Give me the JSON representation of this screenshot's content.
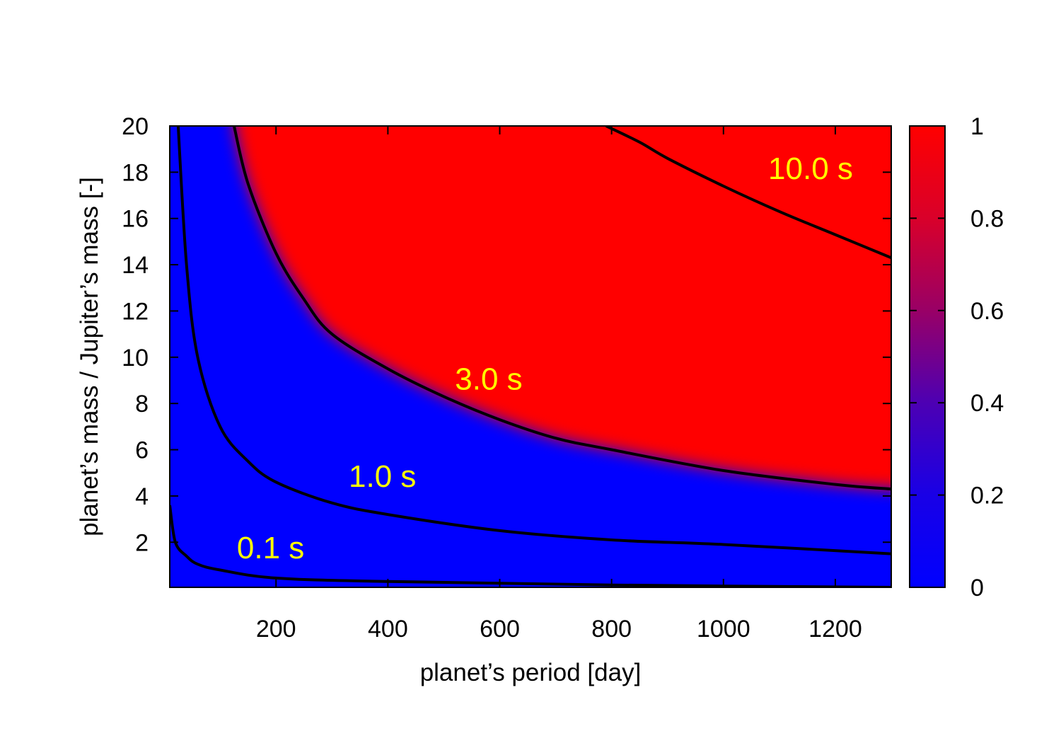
{
  "chart_data": {
    "type": "heatmap",
    "title": "",
    "xlabel": "planet’s period [day]",
    "ylabel": "planet’s mass  / Jupiter’s mass [-]",
    "xlim": [
      10,
      1300
    ],
    "ylim": [
      0.05,
      20
    ],
    "x_ticks": [
      "200",
      "400",
      "600",
      "800",
      "1000",
      "1200"
    ],
    "y_ticks": [
      "2",
      "4",
      "6",
      "8",
      "10",
      "12",
      "14",
      "16",
      "18",
      "20"
    ],
    "colorbar": {
      "range": [
        0,
        1
      ],
      "ticks": [
        "0",
        "0.2",
        "0.4",
        "0.6",
        "0.8",
        "1"
      ],
      "colors": [
        "#0000ff",
        "#ff0000"
      ]
    },
    "heatmap_description": "value ≈ 0 (blue) below the 3.0 s contour, ≈ 1 (red) above it",
    "contours": [
      {
        "label": "0.1 s",
        "points": [
          [
            10,
            3.6
          ],
          [
            20,
            2.0
          ],
          [
            40,
            1.4
          ],
          [
            60,
            1.05
          ],
          [
            100,
            0.8
          ],
          [
            200,
            0.45
          ],
          [
            400,
            0.3
          ],
          [
            800,
            0.15
          ],
          [
            1300,
            0.05
          ]
        ]
      },
      {
        "label": "1.0 s",
        "points": [
          [
            25,
            20
          ],
          [
            40,
            14
          ],
          [
            60,
            10
          ],
          [
            100,
            7.0
          ],
          [
            150,
            5.5
          ],
          [
            200,
            4.6
          ],
          [
            300,
            3.7
          ],
          [
            400,
            3.2
          ],
          [
            600,
            2.5
          ],
          [
            800,
            2.1
          ],
          [
            1000,
            1.9
          ],
          [
            1300,
            1.5
          ]
        ]
      },
      {
        "label": "3.0 s",
        "points": [
          [
            125,
            20
          ],
          [
            150,
            17.5
          ],
          [
            200,
            14.5
          ],
          [
            250,
            12.5
          ],
          [
            300,
            11.0
          ],
          [
            400,
            9.5
          ],
          [
            500,
            8.3
          ],
          [
            600,
            7.3
          ],
          [
            700,
            6.5
          ],
          [
            800,
            6.0
          ],
          [
            1000,
            5.1
          ],
          [
            1200,
            4.5
          ],
          [
            1300,
            4.3
          ]
        ]
      },
      {
        "label": "10.0 s",
        "points": [
          [
            790,
            20
          ],
          [
            850,
            19.3
          ],
          [
            900,
            18.6
          ],
          [
            1000,
            17.4
          ],
          [
            1100,
            16.3
          ],
          [
            1200,
            15.3
          ],
          [
            1300,
            14.3
          ]
        ]
      }
    ],
    "contour_label_positions": [
      [
        130,
        1.3
      ],
      [
        330,
        4.4
      ],
      [
        520,
        8.6
      ],
      [
        1080,
        17.7
      ]
    ],
    "grid": false,
    "legend": "colorbar-right"
  }
}
